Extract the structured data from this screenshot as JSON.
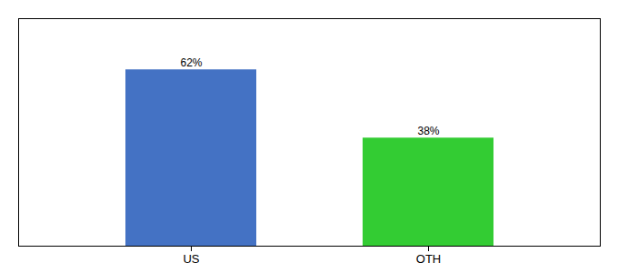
{
  "chart_data": {
    "type": "bar",
    "categories": [
      "US",
      "OTH"
    ],
    "values": [
      62,
      38
    ],
    "colors": [
      "#4472c4",
      "#33cc33"
    ],
    "ylim": [
      0,
      80
    ],
    "data_labels": true,
    "value_labels": [
      "62%",
      "38%"
    ],
    "tick_labels": "x"
  }
}
